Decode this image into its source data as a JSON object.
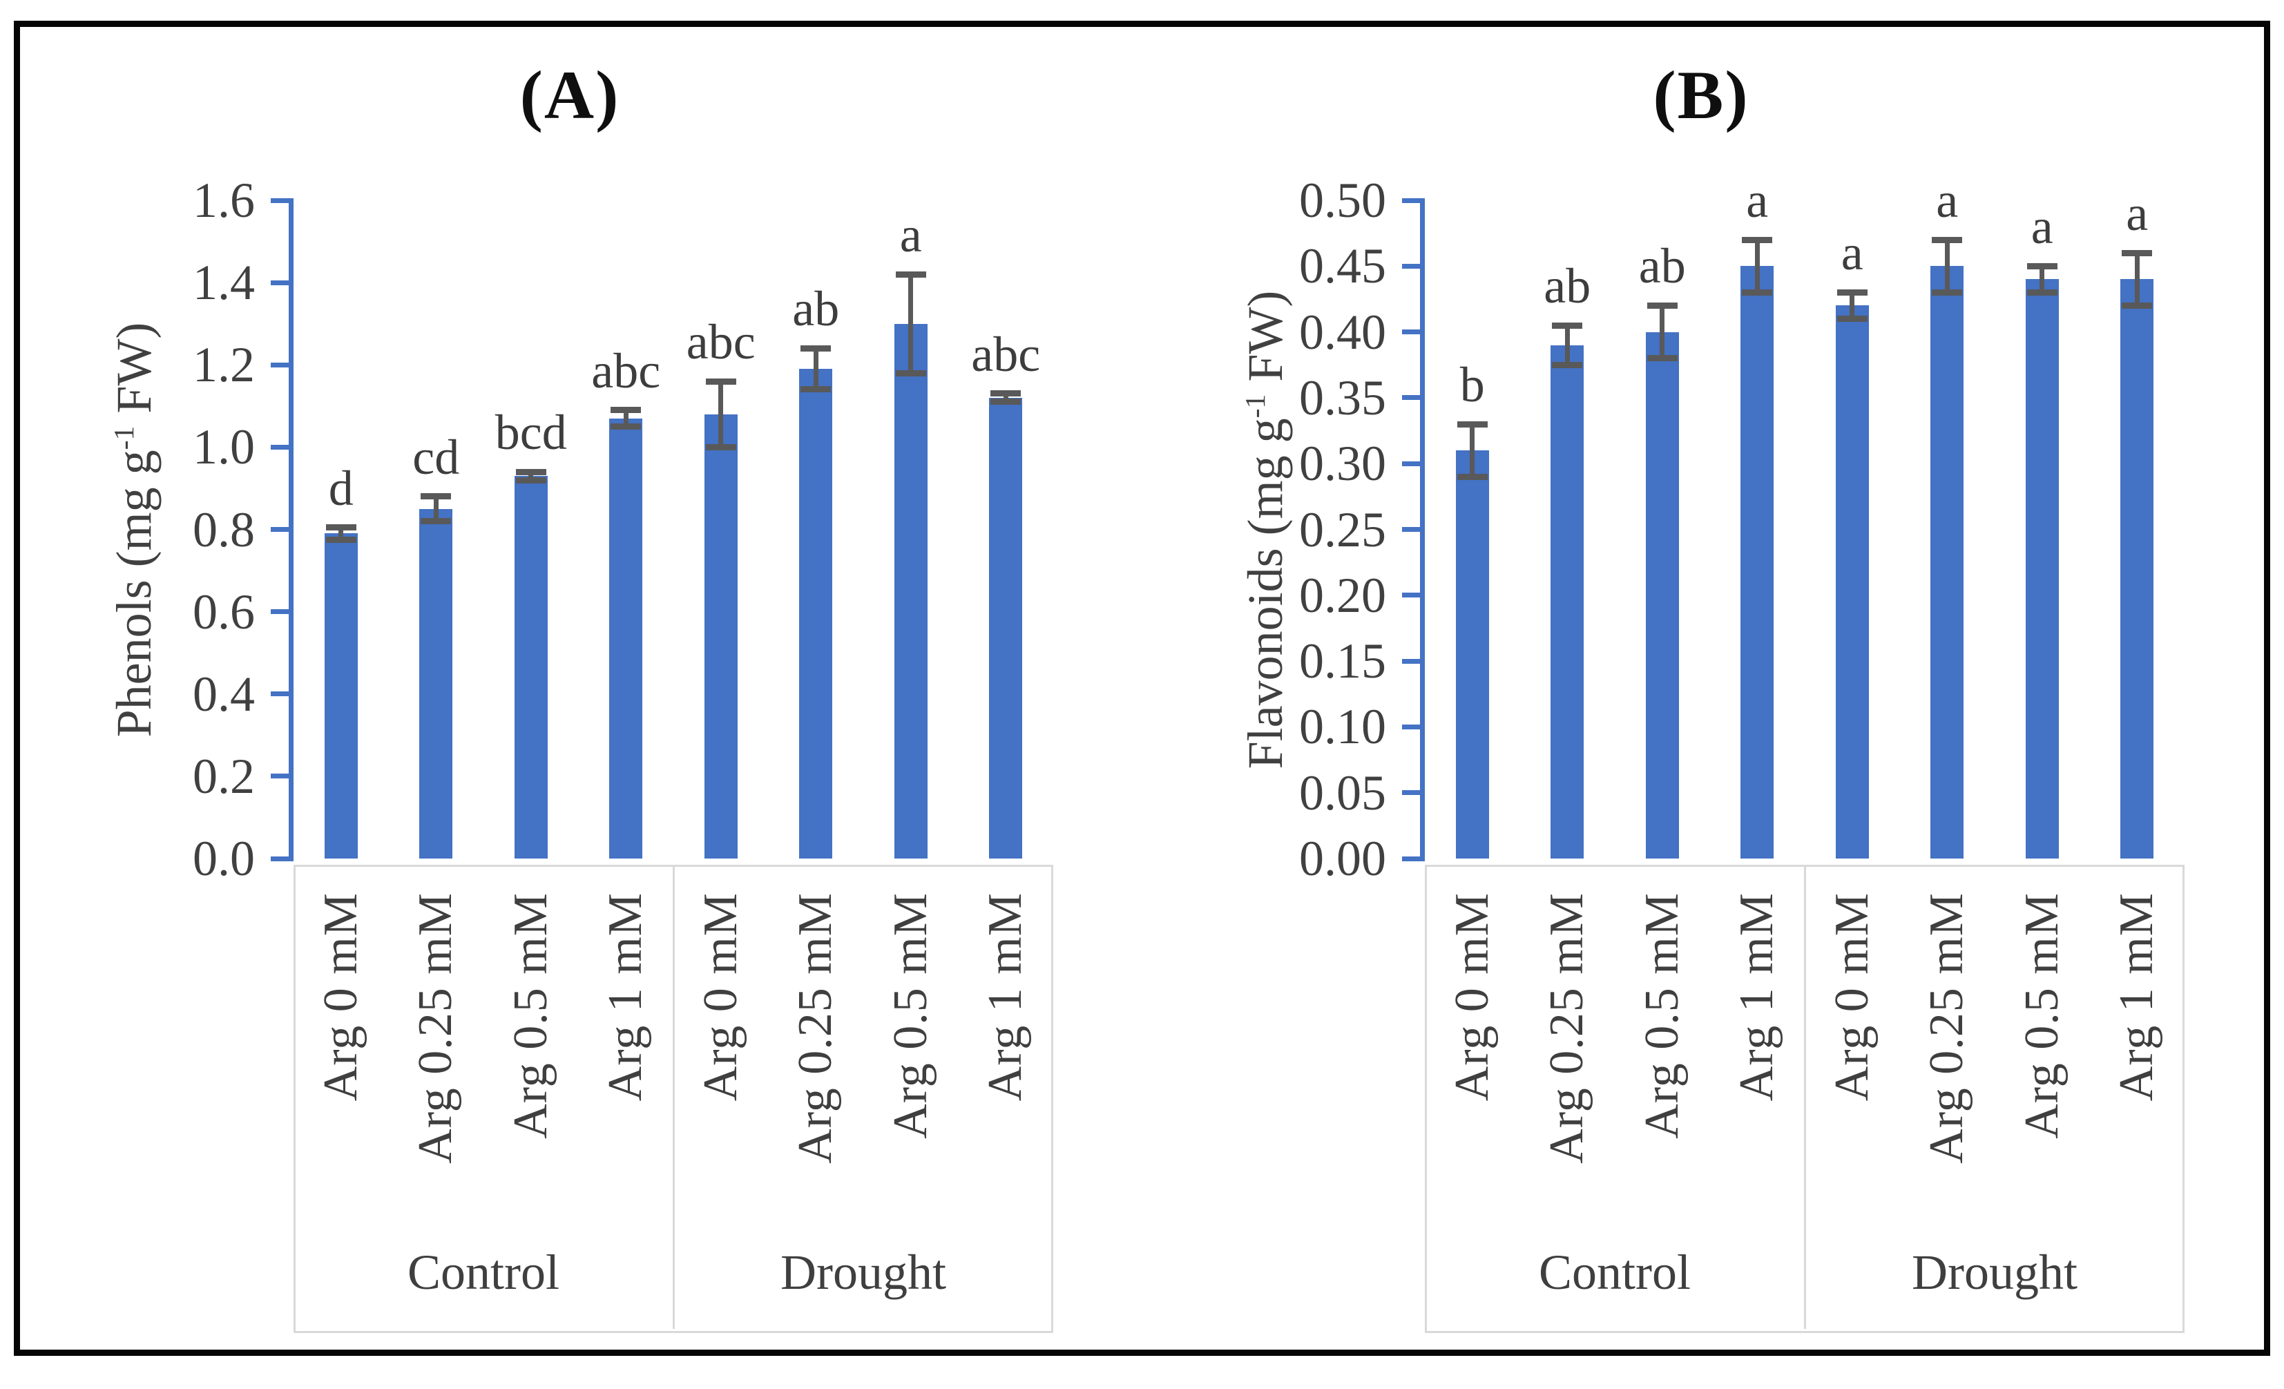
{
  "figure": {
    "background": "#ffffff",
    "border_color": "#050505"
  },
  "colors": {
    "bar_fill": "#4472C4",
    "axis_line": "#4472C4",
    "error_bar": "#595959",
    "tick_text": "#404040",
    "letter_text": "#3d3d3d",
    "category_text": "#3f3f3f",
    "box_border": "#D9D9D9",
    "panel_title_text": "#0f0f0f"
  },
  "chart_data": [
    {
      "type": "bar",
      "title": "(A)",
      "ylabel_prefix": "Phenols (mg g",
      "ylabel_sup": "-1",
      "ylabel_suffix": " FW)",
      "ylim": [
        0,
        1.6
      ],
      "ytick_step": 0.2,
      "yticks": [
        "1.6",
        "1.4",
        "1.2",
        "1.0",
        "0.8",
        "0.6",
        "0.4",
        "0.2",
        "0.0"
      ],
      "grid": false,
      "legend": "none",
      "groups": [
        {
          "label": "Control",
          "span": 4
        },
        {
          "label": "Drought",
          "span": 4
        }
      ],
      "bars": [
        {
          "group": "Control",
          "category": "Arg 0 mM",
          "value": 0.79,
          "error": 0.015,
          "letter": "d"
        },
        {
          "group": "Control",
          "category": "Arg 0.25 mM",
          "value": 0.85,
          "error": 0.03,
          "letter": "cd"
        },
        {
          "group": "Control",
          "category": "Arg 0.5 mM",
          "value": 0.93,
          "error": 0.01,
          "letter": "bcd"
        },
        {
          "group": "Control",
          "category": "Arg 1 mM",
          "value": 1.07,
          "error": 0.02,
          "letter": "abc"
        },
        {
          "group": "Drought",
          "category": "Arg 0 mM",
          "value": 1.08,
          "error": 0.08,
          "letter": "abc"
        },
        {
          "group": "Drought",
          "category": "Arg 0.25 mM",
          "value": 1.19,
          "error": 0.05,
          "letter": "ab"
        },
        {
          "group": "Drought",
          "category": "Arg 0.5 mM",
          "value": 1.3,
          "error": 0.12,
          "letter": "a"
        },
        {
          "group": "Drought",
          "category": "Arg 1 mM",
          "value": 1.12,
          "error": 0.01,
          "letter": "abc"
        }
      ]
    },
    {
      "type": "bar",
      "title": "(B)",
      "ylabel_prefix": "Flavonoids (mg g",
      "ylabel_sup": "-1",
      "ylabel_suffix": " FW)",
      "ylim": [
        0,
        0.5
      ],
      "ytick_step": 0.05,
      "yticks": [
        "0.50",
        "0.45",
        "0.40",
        "0.35",
        "0.30",
        "0.25",
        "0.20",
        "0.15",
        "0.10",
        "0.05",
        "0.00"
      ],
      "grid": false,
      "legend": "none",
      "groups": [
        {
          "label": "Control",
          "span": 4
        },
        {
          "label": "Drought",
          "span": 4
        }
      ],
      "bars": [
        {
          "group": "Control",
          "category": "Arg 0 mM",
          "value": 0.31,
          "error": 0.02,
          "letter": "b"
        },
        {
          "group": "Control",
          "category": "Arg 0.25 mM",
          "value": 0.39,
          "error": 0.015,
          "letter": "ab"
        },
        {
          "group": "Control",
          "category": "Arg 0.5 mM",
          "value": 0.4,
          "error": 0.02,
          "letter": "ab"
        },
        {
          "group": "Control",
          "category": "Arg 1 mM",
          "value": 0.45,
          "error": 0.02,
          "letter": "a"
        },
        {
          "group": "Drought",
          "category": "Arg 0 mM",
          "value": 0.42,
          "error": 0.01,
          "letter": "a"
        },
        {
          "group": "Drought",
          "category": "Arg 0.25 mM",
          "value": 0.45,
          "error": 0.02,
          "letter": "a"
        },
        {
          "group": "Drought",
          "category": "Arg 0.5 mM",
          "value": 0.44,
          "error": 0.01,
          "letter": "a"
        },
        {
          "group": "Drought",
          "category": "Arg 1 mM",
          "value": 0.44,
          "error": 0.02,
          "letter": "a"
        }
      ]
    }
  ]
}
